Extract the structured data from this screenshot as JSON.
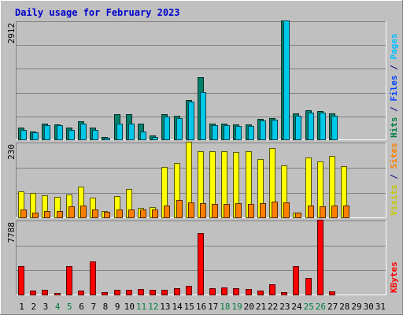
{
  "chart_data": {
    "type": "bar",
    "title": "Daily usage for February 2023",
    "categories": [
      "1",
      "2",
      "3",
      "4",
      "5",
      "6",
      "7",
      "8",
      "9",
      "10",
      "11",
      "12",
      "13",
      "14",
      "15",
      "16",
      "17",
      "18",
      "19",
      "20",
      "21",
      "22",
      "23",
      "24",
      "25",
      "26",
      "27",
      "28",
      "29",
      "30",
      "31"
    ],
    "weekend_days": [
      "4",
      "5",
      "11",
      "12",
      "18",
      "19",
      "25",
      "26"
    ],
    "panels": [
      {
        "name": "top",
        "scale_label": "2912",
        "ylim": [
          0,
          2912
        ],
        "axis_label": [
          {
            "text": "Hits",
            "color": "#008040"
          },
          {
            "text": " / ",
            "color": "#000080"
          },
          {
            "text": "Files",
            "color": "#0040ff"
          },
          {
            "text": " / ",
            "color": "#000080"
          },
          {
            "text": "Pages",
            "color": "#00c0ff"
          }
        ],
        "series": [
          {
            "name": "Hits",
            "color": "#00806b",
            "values": [
              290,
              200,
              380,
              370,
              280,
              450,
              290,
              60,
              610,
              620,
              380,
              90,
              610,
              580,
              970,
              1520,
              380,
              380,
              370,
              360,
              510,
              520,
              2912,
              640,
              710,
              700,
              630,
              0,
              0,
              0,
              0
            ]
          },
          {
            "name": "Files",
            "color": "#00c8e8",
            "values": [
              240,
              170,
              340,
              340,
              230,
              380,
              230,
              40,
              380,
              380,
              200,
              60,
              560,
              530,
              930,
              1160,
              350,
              350,
              320,
              320,
              460,
              480,
              2912,
              580,
              660,
              650,
              580,
              0,
              0,
              0,
              0
            ]
          }
        ]
      },
      {
        "name": "middle",
        "scale_label": "230",
        "ylim": [
          0,
          230
        ],
        "axis_label": [
          {
            "text": "Visits",
            "color": "#c8c800"
          },
          {
            "text": " / ",
            "color": "#000080"
          },
          {
            "text": "Sites",
            "color": "#ff8000"
          }
        ],
        "series": [
          {
            "name": "Visits",
            "color": "#ffff00",
            "values": [
              80,
              75,
              68,
              62,
              70,
              94,
              60,
              20,
              64,
              86,
              29,
              32,
              154,
              165,
              230,
              202,
              202,
              202,
              200,
              202,
              178,
              212,
              159,
              15,
              182,
              170,
              187,
              155,
              0,
              0,
              0
            ]
          },
          {
            "name": "Sites",
            "color": "#ff8000",
            "values": [
              24,
              15,
              19,
              18,
              34,
              35,
              24,
              17,
              25,
              25,
              25,
              25,
              35,
              53,
              45,
              42,
              40,
              40,
              44,
              40,
              44,
              49,
              45,
              15,
              35,
              33,
              36,
              35,
              0,
              0,
              0
            ]
          }
        ]
      },
      {
        "name": "bottom",
        "scale_label": "7788",
        "ylim": [
          0,
          7788
        ],
        "axis_label": [
          {
            "text": "KBytes",
            "color": "#ff0000"
          }
        ],
        "series": [
          {
            "name": "KBytes",
            "color": "#ff0000",
            "values": [
              2920,
              400,
              500,
              160,
              2920,
              400,
              3480,
              240,
              500,
              500,
              600,
              520,
              500,
              620,
              880,
              6380,
              640,
              700,
              650,
              560,
              440,
              1050,
              280,
              2920,
              1720,
              7788,
              300,
              0,
              0,
              0,
              0
            ]
          }
        ]
      }
    ]
  }
}
